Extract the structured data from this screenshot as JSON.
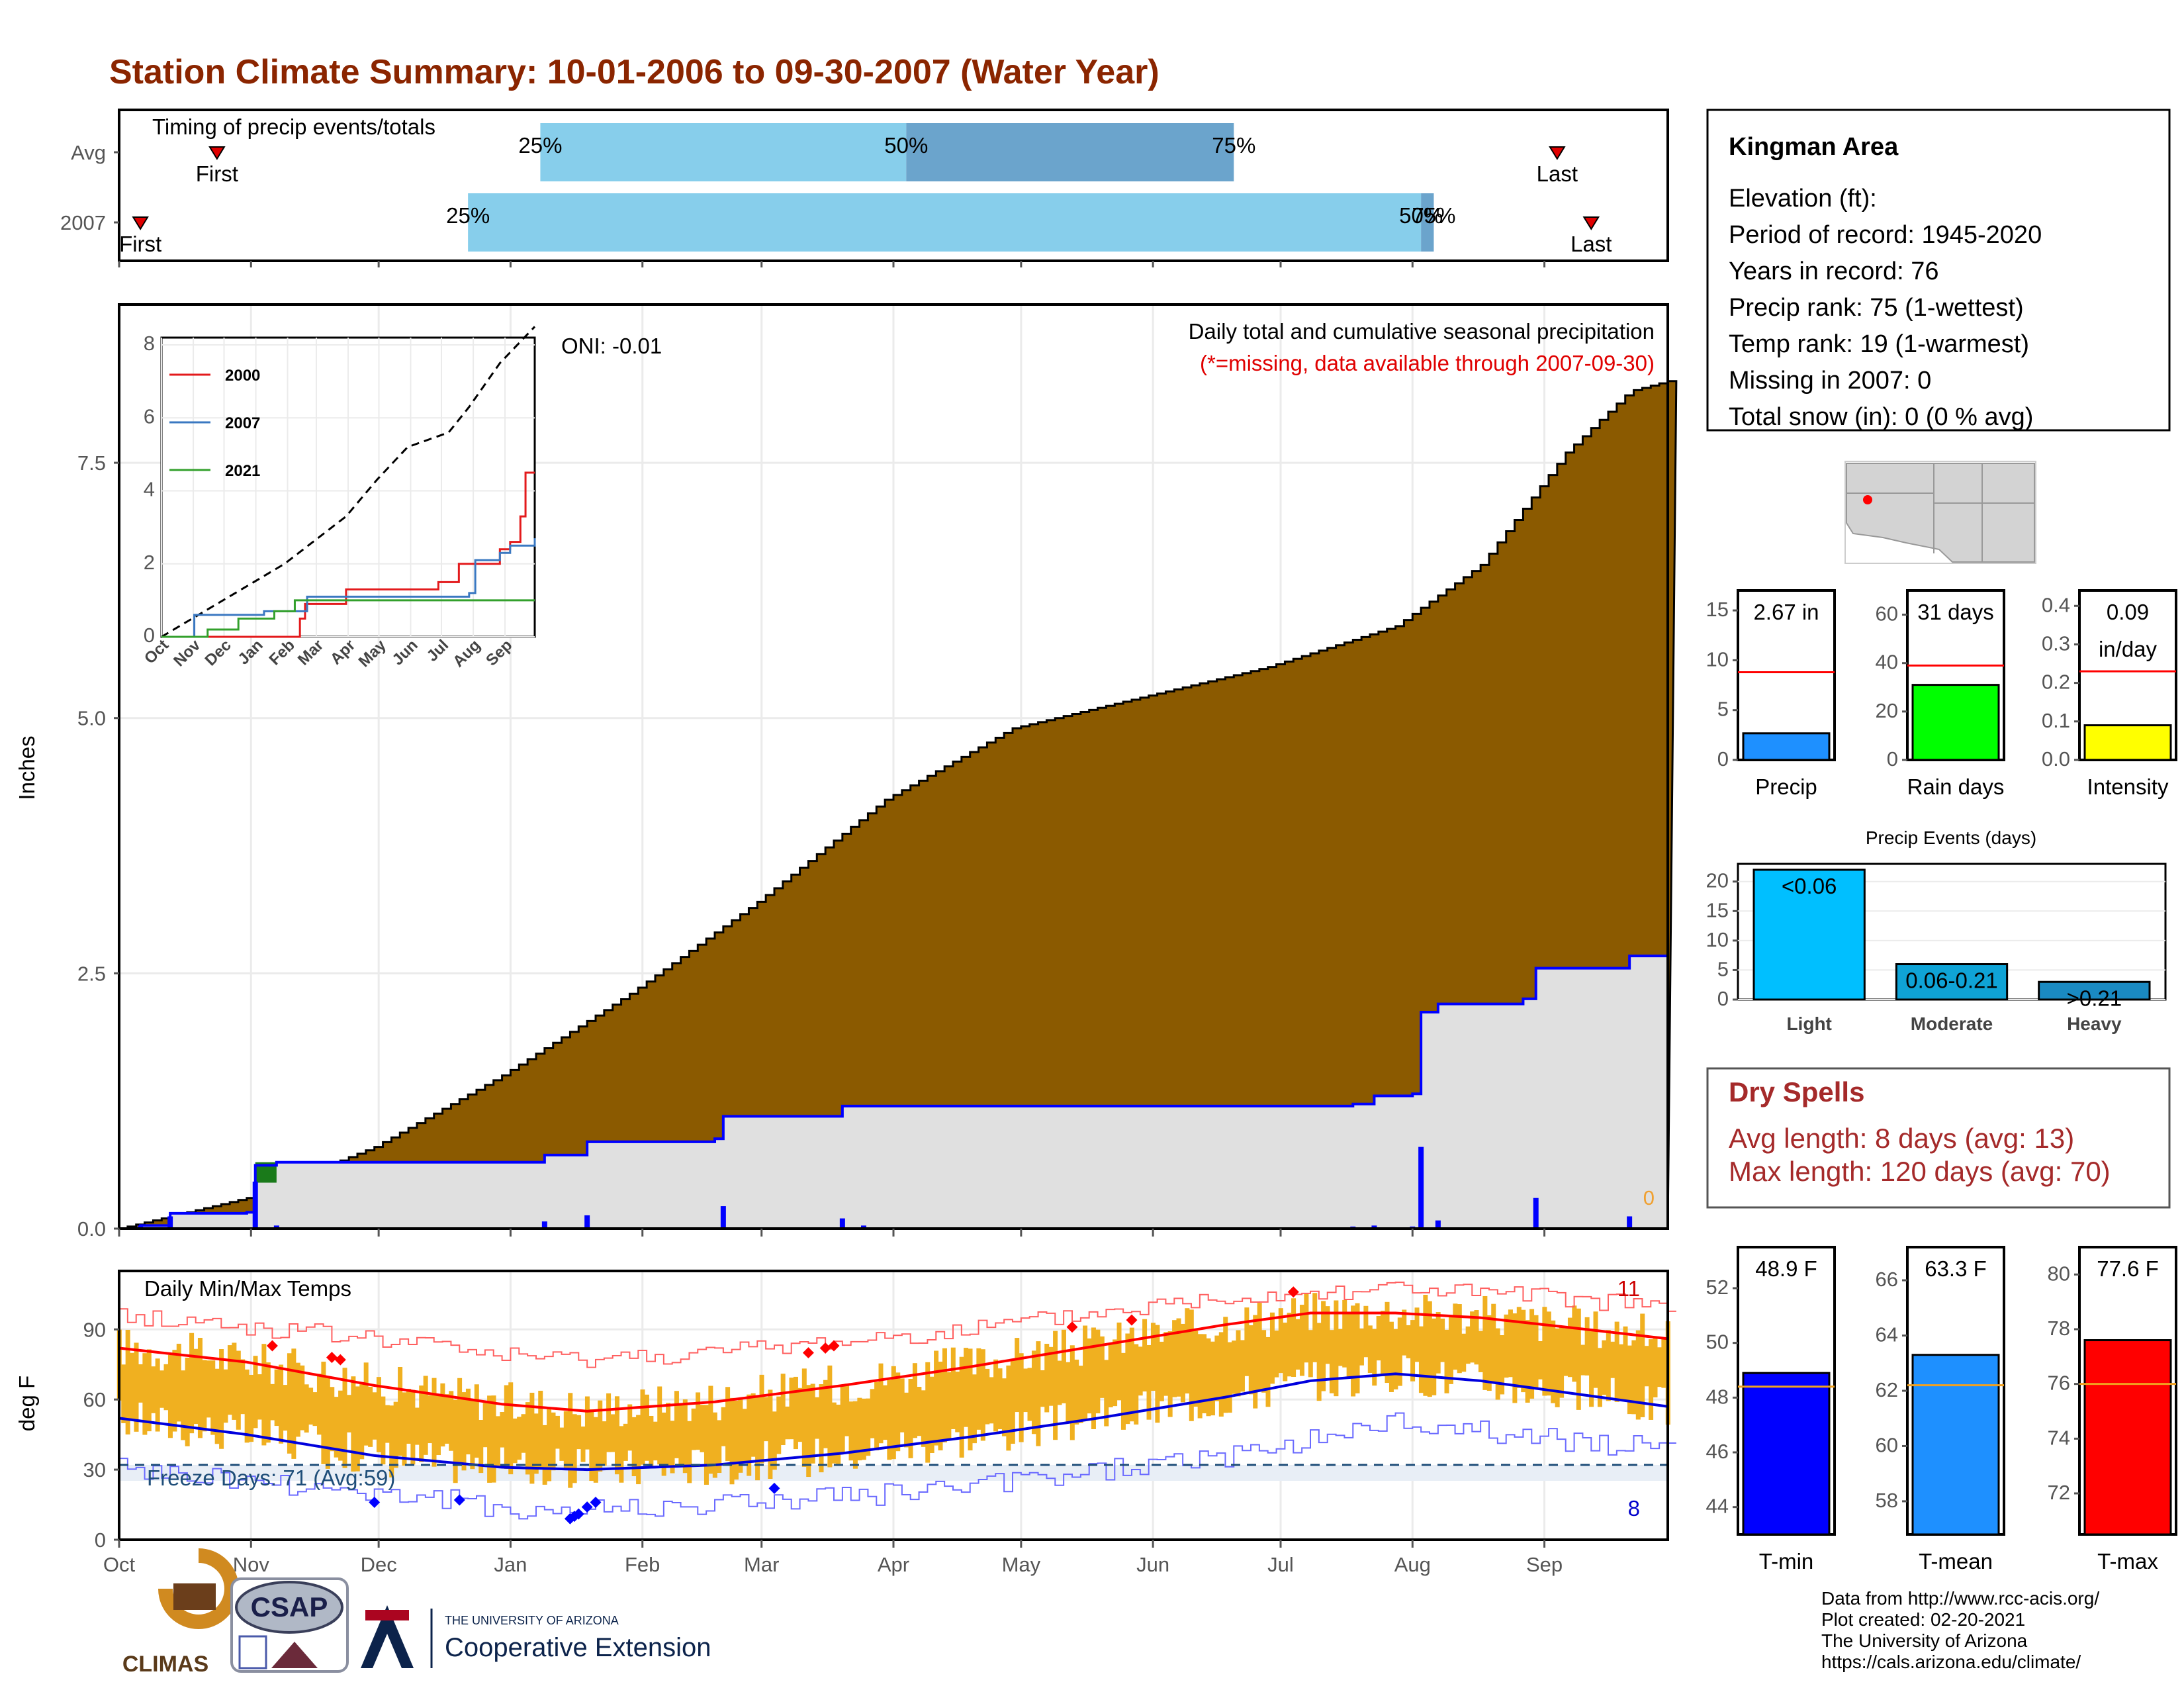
{
  "title": "Station Climate Summary: 10-01-2006 to 09-30-2007 (Water Year)",
  "timing": {
    "label": "Timing of precip events/totals",
    "rows": [
      {
        "name": "Avg",
        "first_label": "First",
        "last_label": "Last",
        "first_doy": 23,
        "last_doy": 338,
        "p25": 99,
        "p50": 185,
        "p75": 262
      },
      {
        "name": "2007",
        "first_label": "First",
        "last_label": "Last",
        "first_doy": 5,
        "last_doy": 346,
        "p25": 82,
        "p50": 306,
        "p75": 309
      }
    ],
    "pct_labels": [
      "25%",
      "50%",
      "75%"
    ]
  },
  "precip": {
    "ylabel": "Inches",
    "yticks": [
      "0.0",
      "2.5",
      "5.0",
      "7.5"
    ],
    "ylim": [
      0,
      9.05
    ],
    "oni": "ONI: -0.01",
    "subtitle": "Daily total and cumulative seasonal precipitation",
    "missing_note": "(*=missing, data available through 2007-09-30)",
    "missing_count": "0",
    "avg_cumulative": [
      [
        0,
        0
      ],
      [
        30,
        0.3
      ],
      [
        60,
        0.8
      ],
      [
        90,
        1.5
      ],
      [
        120,
        2.3
      ],
      [
        150,
        3.2
      ],
      [
        180,
        4.2
      ],
      [
        210,
        4.9
      ],
      [
        240,
        5.2
      ],
      [
        270,
        5.5
      ],
      [
        300,
        5.9
      ],
      [
        320,
        6.5
      ],
      [
        340,
        7.6
      ],
      [
        355,
        8.2
      ],
      [
        364,
        8.3
      ]
    ],
    "cumulative_2007": [
      [
        0,
        0
      ],
      [
        5,
        0.03
      ],
      [
        12,
        0.15
      ],
      [
        30,
        0.16
      ],
      [
        32,
        0.62
      ],
      [
        37,
        0.65
      ],
      [
        100,
        0.72
      ],
      [
        110,
        0.85
      ],
      [
        140,
        0.88
      ],
      [
        142,
        1.1
      ],
      [
        170,
        1.2
      ],
      [
        290,
        1.22
      ],
      [
        295,
        1.3
      ],
      [
        304,
        1.32
      ],
      [
        306,
        2.12
      ],
      [
        310,
        2.2
      ],
      [
        330,
        2.25
      ],
      [
        333,
        2.55
      ],
      [
        355,
        2.67
      ],
      [
        364,
        2.67
      ]
    ],
    "daily_2007": [
      [
        5,
        0.03
      ],
      [
        12,
        0.12
      ],
      [
        32,
        0.46
      ],
      [
        37,
        0.03
      ],
      [
        79,
        0.01
      ],
      [
        83,
        0.01
      ],
      [
        100,
        0.07
      ],
      [
        110,
        0.13
      ],
      [
        125,
        0.01
      ],
      [
        142,
        0.22
      ],
      [
        170,
        0.1
      ],
      [
        175,
        0.03
      ],
      [
        290,
        0.02
      ],
      [
        295,
        0.03
      ],
      [
        304,
        0.02
      ],
      [
        306,
        0.8
      ],
      [
        310,
        0.08
      ],
      [
        333,
        0.3
      ],
      [
        355,
        0.12
      ]
    ]
  },
  "inset": {
    "yticks": [
      "0",
      "2",
      "4",
      "6",
      "8"
    ],
    "months": [
      "Oct",
      "Nov",
      "Dec",
      "Jan",
      "Feb",
      "Mar",
      "Apr",
      "May",
      "Jun",
      "Jul",
      "Aug",
      "Sep"
    ],
    "legend": [
      {
        "name": "2000",
        "color": "#e31a1c"
      },
      {
        "name": "2007",
        "color": "#3a78c1"
      },
      {
        "name": "2021",
        "color": "#33a02c"
      }
    ],
    "avg": [
      [
        0,
        0
      ],
      [
        60,
        1
      ],
      [
        120,
        2
      ],
      [
        180,
        3.3
      ],
      [
        210,
        4.3
      ],
      [
        240,
        5.2
      ],
      [
        280,
        5.6
      ],
      [
        300,
        6.3
      ],
      [
        330,
        7.5
      ],
      [
        364,
        8.5
      ]
    ],
    "series": {
      "2000": [
        [
          0,
          0
        ],
        [
          130,
          0
        ],
        [
          135,
          0.5
        ],
        [
          140,
          0.9
        ],
        [
          180,
          1.3
        ],
        [
          270,
          1.5
        ],
        [
          290,
          2.0
        ],
        [
          330,
          2.4
        ],
        [
          340,
          2.6
        ],
        [
          350,
          3.3
        ],
        [
          355,
          4.5
        ],
        [
          364,
          4.5
        ]
      ],
      "2007": [
        [
          0,
          0
        ],
        [
          32,
          0.6
        ],
        [
          100,
          0.7
        ],
        [
          142,
          1.1
        ],
        [
          300,
          1.2
        ],
        [
          306,
          2.1
        ],
        [
          330,
          2.3
        ],
        [
          340,
          2.5
        ],
        [
          364,
          2.7
        ]
      ],
      "2021": [
        [
          0,
          0
        ],
        [
          45,
          0.2
        ],
        [
          75,
          0.5
        ],
        [
          110,
          0.7
        ],
        [
          130,
          1.0
        ],
        [
          364,
          1.0
        ]
      ]
    }
  },
  "temps": {
    "label": "Daily Min/Max Temps",
    "ylabel": "deg F",
    "yticks": [
      "0",
      "30",
      "60",
      "90"
    ],
    "ylim": [
      0,
      115
    ],
    "freeze_label": "Freeze Days: 71 (Avg:59)",
    "freeze_temp": 32,
    "record_high_count": "11",
    "record_low_count": "8",
    "normal_max": [
      [
        0,
        82
      ],
      [
        30,
        76
      ],
      [
        60,
        66
      ],
      [
        90,
        58
      ],
      [
        110,
        55
      ],
      [
        140,
        59
      ],
      [
        170,
        66
      ],
      [
        200,
        74
      ],
      [
        230,
        83
      ],
      [
        260,
        92
      ],
      [
        280,
        97
      ],
      [
        300,
        97
      ],
      [
        320,
        95
      ],
      [
        340,
        91
      ],
      [
        364,
        86
      ]
    ],
    "normal_min": [
      [
        0,
        52
      ],
      [
        30,
        45
      ],
      [
        60,
        36
      ],
      [
        90,
        31
      ],
      [
        110,
        30
      ],
      [
        140,
        32
      ],
      [
        170,
        37
      ],
      [
        200,
        44
      ],
      [
        230,
        52
      ],
      [
        260,
        61
      ],
      [
        280,
        68
      ],
      [
        300,
        71
      ],
      [
        320,
        68
      ],
      [
        340,
        63
      ],
      [
        364,
        57
      ]
    ],
    "record_max": [
      [
        0,
        96
      ],
      [
        60,
        86
      ],
      [
        100,
        77
      ],
      [
        140,
        80
      ],
      [
        200,
        90
      ],
      [
        260,
        104
      ],
      [
        300,
        108
      ],
      [
        364,
        100
      ]
    ],
    "record_min": [
      [
        0,
        30
      ],
      [
        60,
        20
      ],
      [
        100,
        12
      ],
      [
        140,
        15
      ],
      [
        200,
        22
      ],
      [
        260,
        36
      ],
      [
        300,
        50
      ],
      [
        364,
        38
      ]
    ]
  },
  "months": [
    "Oct",
    "Nov",
    "Dec",
    "Jan",
    "Feb",
    "Mar",
    "Apr",
    "May",
    "Jun",
    "Jul",
    "Aug",
    "Sep"
  ],
  "month_starts": [
    0,
    31,
    61,
    92,
    123,
    151,
    182,
    212,
    243,
    273,
    304,
    335
  ],
  "station": {
    "name": "Kingman Area",
    "lines": [
      "Elevation (ft):",
      "Period of record: 1945-2020",
      "Years in record: 76",
      "Precip rank: 75 (1-wettest)",
      "Temp rank: 19 (1-warmest)",
      "Missing in 2007: 0",
      "Total snow (in): 0 (0 % avg)"
    ]
  },
  "mini_bars": [
    {
      "label": "Precip",
      "value_text": "2.67 in",
      "value": 2.67,
      "avg": 8.8,
      "ylim": [
        0,
        17
      ],
      "yticks": [
        "0",
        "5",
        "10",
        "15"
      ],
      "ytick_vals": [
        0,
        5,
        10,
        15
      ],
      "color": "#1e90ff"
    },
    {
      "label": "Rain days",
      "value_text": "31 days",
      "value": 31,
      "avg": 39,
      "ylim": [
        0,
        70
      ],
      "yticks": [
        "0",
        "20",
        "40",
        "60"
      ],
      "ytick_vals": [
        0,
        20,
        40,
        60
      ],
      "color": "#00ff00"
    },
    {
      "label": "Intensity",
      "value_text": "0.09",
      "value_text2": "in/day",
      "value": 0.09,
      "avg": 0.23,
      "ylim": [
        0,
        0.44
      ],
      "yticks": [
        "0.0",
        "0.1",
        "0.2",
        "0.3",
        "0.4"
      ],
      "ytick_vals": [
        0,
        0.1,
        0.2,
        0.3,
        0.4
      ],
      "color": "#ffff00"
    }
  ],
  "events": {
    "title": "Precip Events (days)",
    "categories": [
      "Light",
      "Moderate",
      "Heavy"
    ],
    "values": [
      22,
      6,
      3
    ],
    "value_labels": [
      "<0.06",
      "0.06-0.21",
      ">0.21"
    ],
    "colors": [
      "#00bfff",
      "#0fa3d6",
      "#1a8ac2"
    ],
    "ylim": [
      0,
      23
    ],
    "yticks": [
      "0",
      "5",
      "10",
      "15",
      "20"
    ],
    "ytick_vals": [
      0,
      5,
      10,
      15,
      20
    ]
  },
  "dry_spells": {
    "title": "Dry Spells",
    "lines": [
      "Avg length: 8 days (avg: 13)",
      "Max length: 120 days (avg: 70)"
    ]
  },
  "temp_bars": [
    {
      "label": "T-min",
      "value_text": "48.9 F",
      "value": 48.9,
      "avg": 48.4,
      "ylim": [
        43,
        53.5
      ],
      "yticks": [
        "44",
        "46",
        "48",
        "50",
        "52"
      ],
      "ytick_vals": [
        44,
        46,
        48,
        50,
        52
      ],
      "color": "#0000ff"
    },
    {
      "label": "T-mean",
      "value_text": "63.3 F",
      "value": 63.3,
      "avg": 62.2,
      "ylim": [
        56.8,
        67.2
      ],
      "yticks": [
        "58",
        "60",
        "62",
        "64",
        "66"
      ],
      "ytick_vals": [
        58,
        60,
        62,
        64,
        66
      ],
      "color": "#1e90ff"
    },
    {
      "label": "T-max",
      "value_text": "77.6 F",
      "value": 77.6,
      "avg": 76,
      "ylim": [
        70.5,
        81
      ],
      "yticks": [
        "72",
        "74",
        "76",
        "78",
        "80"
      ],
      "ytick_vals": [
        72,
        74,
        76,
        78,
        80
      ],
      "color": "#ff0000"
    }
  ],
  "credits": [
    "Data from http://www.rcc-acis.org/",
    "Plot created: 02-20-2021",
    "The University of Arizona",
    "https://cals.arizona.edu/climate/"
  ],
  "logos": {
    "climas": "CLIMAS",
    "csap": "CSAP",
    "ua_small": "THE UNIVERSITY OF ARIZONA",
    "ua_big": "Cooperative Extension"
  }
}
